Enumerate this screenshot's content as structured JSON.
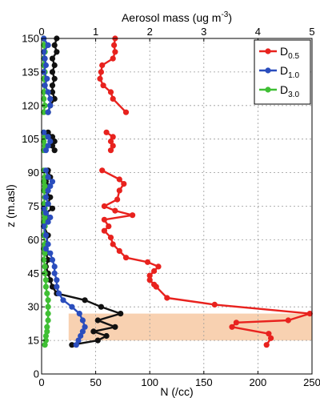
{
  "chart_data": {
    "type": "line",
    "top_axis": {
      "label": "Aerosol mass (ug m",
      "label_sup": "-3",
      "label_close": ")",
      "range": [
        0,
        5
      ],
      "ticks": [
        0,
        1,
        2,
        3,
        4,
        5
      ]
    },
    "xlabel": "N (/cc)",
    "xlim": [
      0,
      250
    ],
    "xticks": [
      0,
      50,
      100,
      150,
      200,
      250
    ],
    "ylabel": "z (m.asl)",
    "ylim": [
      0,
      150
    ],
    "yticks": [
      0,
      15,
      30,
      45,
      60,
      75,
      90,
      105,
      120,
      135,
      150
    ],
    "grid": true,
    "legend_position": "top-right",
    "highlight_band": {
      "y_range": [
        15,
        27
      ],
      "x_range": [
        25,
        250
      ],
      "color": "#f7c9a3"
    },
    "legend": [
      {
        "base": "D",
        "sub": "0.5",
        "color": "#e8221e"
      },
      {
        "base": "D",
        "sub": "1.0",
        "color": "#2a4dbd"
      },
      {
        "base": "D",
        "sub": "3.0",
        "color": "#3fbf34"
      }
    ],
    "series": [
      {
        "name": "D0.5",
        "color": "#e8221e",
        "segments": [
          [
            [
              68,
              150
            ],
            [
              67,
              147
            ],
            [
              68,
              144
            ],
            [
              66,
              141
            ],
            [
              56,
              138
            ],
            [
              55,
              135
            ],
            [
              54,
              132
            ],
            [
              57,
              129
            ],
            [
              64,
              126
            ],
            [
              66,
              123
            ],
            [
              78,
              117
            ]
          ],
          [
            [
              60,
              108
            ],
            [
              66,
              106
            ],
            [
              64,
              104
            ],
            [
              66,
              102
            ],
            [
              64,
              100
            ]
          ],
          [
            [
              56,
              91
            ],
            [
              72,
              87
            ],
            [
              76,
              85
            ],
            [
              72,
              82
            ],
            [
              70,
              78
            ],
            [
              58,
              75
            ],
            [
              68,
              73
            ],
            [
              84,
              71
            ],
            [
              58,
              69
            ],
            [
              62,
              66
            ],
            [
              58,
              64
            ],
            [
              64,
              61
            ],
            [
              66,
              58
            ],
            [
              72,
              55
            ],
            [
              78,
              52
            ],
            [
              98,
              50
            ],
            [
              108,
              48
            ],
            [
              104,
              46
            ],
            [
              100,
              44
            ],
            [
              100,
              42
            ],
            [
              104,
              40
            ],
            [
              106,
              39
            ],
            [
              116,
              34
            ],
            [
              160,
              31
            ],
            [
              248,
              27
            ],
            [
              228,
              24
            ],
            [
              180,
              23
            ],
            [
              176,
              21
            ],
            [
              210,
              18
            ],
            [
              212,
              16
            ],
            [
              208,
              13
            ]
          ]
        ]
      },
      {
        "name": "D1.0",
        "color": "#2a4dbd",
        "segments": [
          [
            [
              2,
              150
            ],
            [
              6,
              147
            ],
            [
              2,
              144
            ],
            [
              3,
              141
            ],
            [
              4,
              138
            ],
            [
              2,
              135
            ],
            [
              5,
              132
            ],
            [
              3,
              129
            ],
            [
              6,
              126
            ],
            [
              8,
              123
            ],
            [
              8,
              120
            ],
            [
              6,
              117
            ]
          ],
          [
            [
              2,
              108
            ],
            [
              6,
              106
            ],
            [
              8,
              104
            ],
            [
              6,
              102
            ],
            [
              4,
              100
            ]
          ],
          [
            [
              4,
              91
            ],
            [
              6,
              88
            ],
            [
              10,
              86
            ],
            [
              8,
              84
            ],
            [
              6,
              82
            ],
            [
              4,
              79
            ],
            [
              6,
              76
            ],
            [
              2,
              74
            ],
            [
              4,
              72
            ],
            [
              8,
              70
            ],
            [
              6,
              68
            ],
            [
              2,
              66
            ],
            [
              4,
              62
            ],
            [
              6,
              58
            ],
            [
              4,
              56
            ],
            [
              8,
              54
            ],
            [
              10,
              51
            ],
            [
              12,
              48
            ],
            [
              12,
              45
            ],
            [
              14,
              42
            ],
            [
              14,
              39
            ],
            [
              16,
              36
            ],
            [
              20,
              33
            ],
            [
              28,
              30
            ],
            [
              35,
              27
            ],
            [
              38,
              24
            ],
            [
              40,
              21
            ],
            [
              38,
              19
            ],
            [
              36,
              17
            ],
            [
              34,
              15
            ],
            [
              32,
              13
            ]
          ]
        ]
      },
      {
        "name": "D3.0",
        "color": "#3fbf34",
        "segments": [
          [
            [
              2,
              150
            ],
            [
              2,
              147
            ],
            [
              3,
              144
            ],
            [
              2,
              141
            ],
            [
              2,
              138
            ],
            [
              3,
              135
            ],
            [
              2,
              132
            ],
            [
              3,
              129
            ],
            [
              2,
              126
            ],
            [
              2,
              123
            ],
            [
              3,
              120
            ],
            [
              2,
              117
            ]
          ],
          [
            [
              2,
              108
            ],
            [
              3,
              106
            ],
            [
              2,
              104
            ],
            [
              3,
              102
            ],
            [
              2,
              100
            ]
          ],
          [
            [
              2,
              91
            ],
            [
              3,
              88
            ],
            [
              2,
              86
            ],
            [
              3,
              84
            ],
            [
              2,
              82
            ],
            [
              3,
              79
            ],
            [
              2,
              76
            ],
            [
              3,
              74
            ],
            [
              2,
              72
            ],
            [
              3,
              70
            ],
            [
              2,
              68
            ],
            [
              3,
              66
            ],
            [
              2,
              62
            ],
            [
              3,
              58
            ],
            [
              2,
              56
            ],
            [
              3,
              54
            ],
            [
              2,
              51
            ],
            [
              3,
              48
            ],
            [
              3,
              45
            ],
            [
              4,
              42
            ],
            [
              4,
              39
            ],
            [
              5,
              36
            ],
            [
              6,
              33
            ],
            [
              6,
              30
            ],
            [
              6,
              27
            ],
            [
              6,
              24
            ],
            [
              5,
              21
            ],
            [
              5,
              19
            ],
            [
              4,
              17
            ],
            [
              4,
              15
            ],
            [
              3,
              13
            ]
          ]
        ]
      },
      {
        "name": "",
        "color": "#111111",
        "segments": [
          [
            [
              14,
              150
            ],
            [
              12,
              147
            ],
            [
              14,
              144
            ],
            [
              10,
              141
            ],
            [
              12,
              138
            ],
            [
              10,
              135
            ],
            [
              12,
              132
            ],
            [
              10,
              129
            ],
            [
              10,
              126
            ],
            [
              12,
              123
            ],
            [
              8,
              120
            ],
            [
              6,
              117
            ]
          ],
          [
            [
              6,
              108
            ],
            [
              10,
              106
            ],
            [
              12,
              104
            ],
            [
              10,
              102
            ],
            [
              12,
              100
            ]
          ],
          [
            [
              6,
              91
            ],
            [
              8,
              88
            ],
            [
              4,
              86
            ],
            [
              6,
              84
            ],
            [
              4,
              82
            ],
            [
              8,
              79
            ],
            [
              6,
              76
            ],
            [
              10,
              74
            ],
            [
              4,
              72
            ],
            [
              6,
              70
            ],
            [
              4,
              68
            ],
            [
              2,
              66
            ],
            [
              6,
              62
            ],
            [
              4,
              58
            ],
            [
              2,
              56
            ],
            [
              4,
              54
            ],
            [
              6,
              51
            ],
            [
              4,
              48
            ],
            [
              6,
              45
            ],
            [
              8,
              42
            ],
            [
              10,
              39
            ],
            [
              14,
              36
            ],
            [
              40,
              33
            ],
            [
              55,
              30
            ],
            [
              73,
              27
            ],
            [
              52,
              24
            ],
            [
              68,
              21
            ],
            [
              48,
              19
            ],
            [
              60,
              17
            ],
            [
              52,
              15
            ],
            [
              28,
              13
            ]
          ]
        ]
      }
    ]
  }
}
